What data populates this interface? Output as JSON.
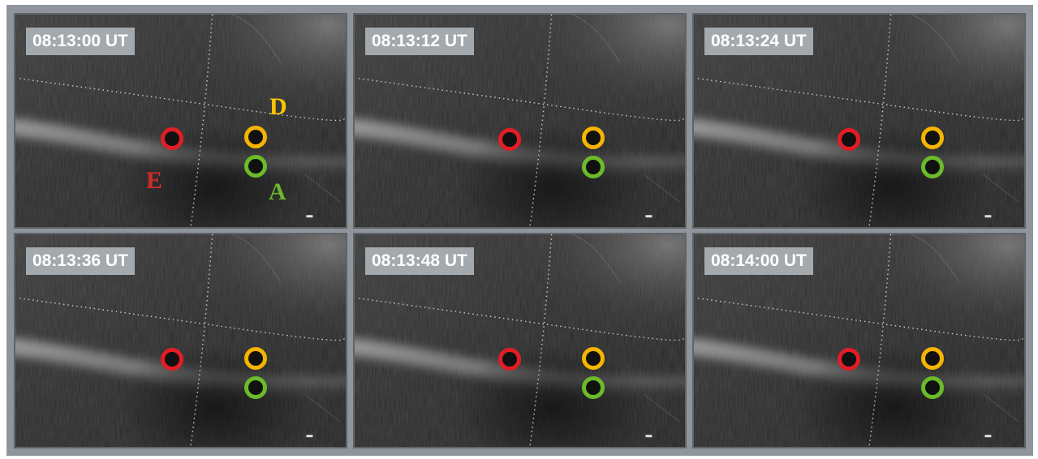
{
  "colors": {
    "red": "#e31d25",
    "yellow": "#f5b400",
    "green": "#6bbb2a",
    "letter_yellow": "#f7c600",
    "letter_red": "#d42a2a",
    "letter_green": "#6fb52d"
  },
  "panels": [
    {
      "time": "08:13:00 UT"
    },
    {
      "time": "08:13:12 UT"
    },
    {
      "time": "08:13:24 UT"
    },
    {
      "time": "08:13:36 UT"
    },
    {
      "time": "08:13:48 UT"
    },
    {
      "time": "08:14:00 UT"
    }
  ],
  "station_labels": {
    "D": "D",
    "E": "E",
    "A": "A"
  }
}
